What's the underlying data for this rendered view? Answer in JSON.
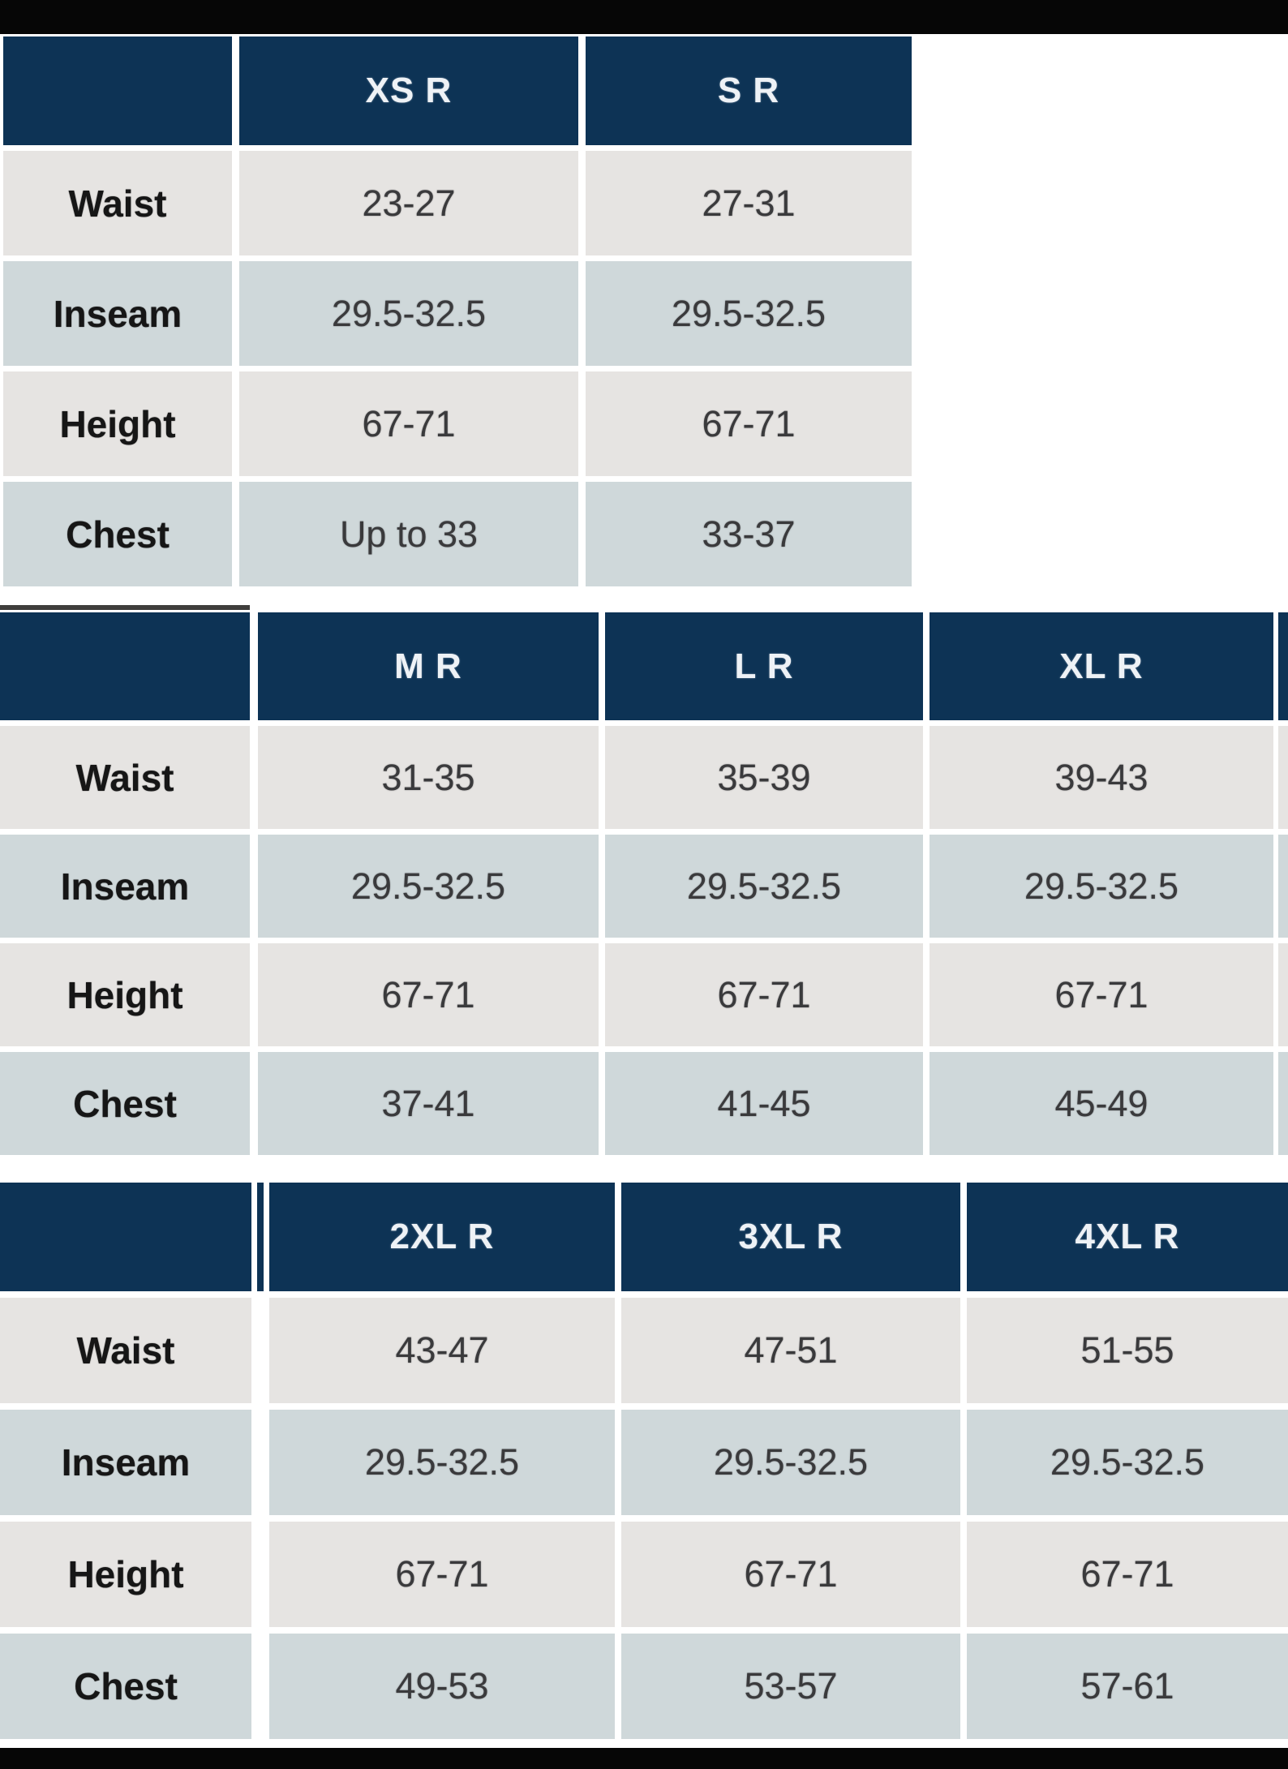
{
  "page": {
    "description": "Apparel size chart with three stacked measurement tables"
  },
  "colors": {
    "header_navy": "#0d3355",
    "row_light_gray": "#e6e4e2",
    "row_blue_gray": "#cfd8da",
    "letterbox_black": "#060606",
    "header_text": "#eef2f6",
    "value_text": "#3a3a3c"
  },
  "tables": [
    {
      "columns": [
        "XS R",
        "S R"
      ],
      "rows": [
        {
          "label": "Waist",
          "values": [
            "23-27",
            "27-31"
          ]
        },
        {
          "label": "Inseam",
          "values": [
            "29.5-32.5",
            "29.5-32.5"
          ]
        },
        {
          "label": "Height",
          "values": [
            "67-71",
            "67-71"
          ]
        },
        {
          "label": "Chest",
          "values": [
            "Up to 33",
            "33-37"
          ]
        }
      ]
    },
    {
      "columns": [
        "M R",
        "L R",
        "XL R"
      ],
      "rows": [
        {
          "label": "Waist",
          "values": [
            "31-35",
            "35-39",
            "39-43"
          ]
        },
        {
          "label": "Inseam",
          "values": [
            "29.5-32.5",
            "29.5-32.5",
            "29.5-32.5"
          ]
        },
        {
          "label": "Height",
          "values": [
            "67-71",
            "67-71",
            "67-71"
          ]
        },
        {
          "label": "Chest",
          "values": [
            "37-41",
            "41-45",
            "45-49"
          ]
        }
      ]
    },
    {
      "columns": [
        "2XL R",
        "3XL R",
        "4XL R"
      ],
      "rows": [
        {
          "label": "Waist",
          "values": [
            "43-47",
            "47-51",
            "51-55"
          ]
        },
        {
          "label": "Inseam",
          "values": [
            "29.5-32.5",
            "29.5-32.5",
            "29.5-32.5"
          ]
        },
        {
          "label": "Height",
          "values": [
            "67-71",
            "67-71",
            "67-71"
          ]
        },
        {
          "label": "Chest",
          "values": [
            "49-53",
            "53-57",
            "57-61"
          ]
        }
      ]
    }
  ]
}
